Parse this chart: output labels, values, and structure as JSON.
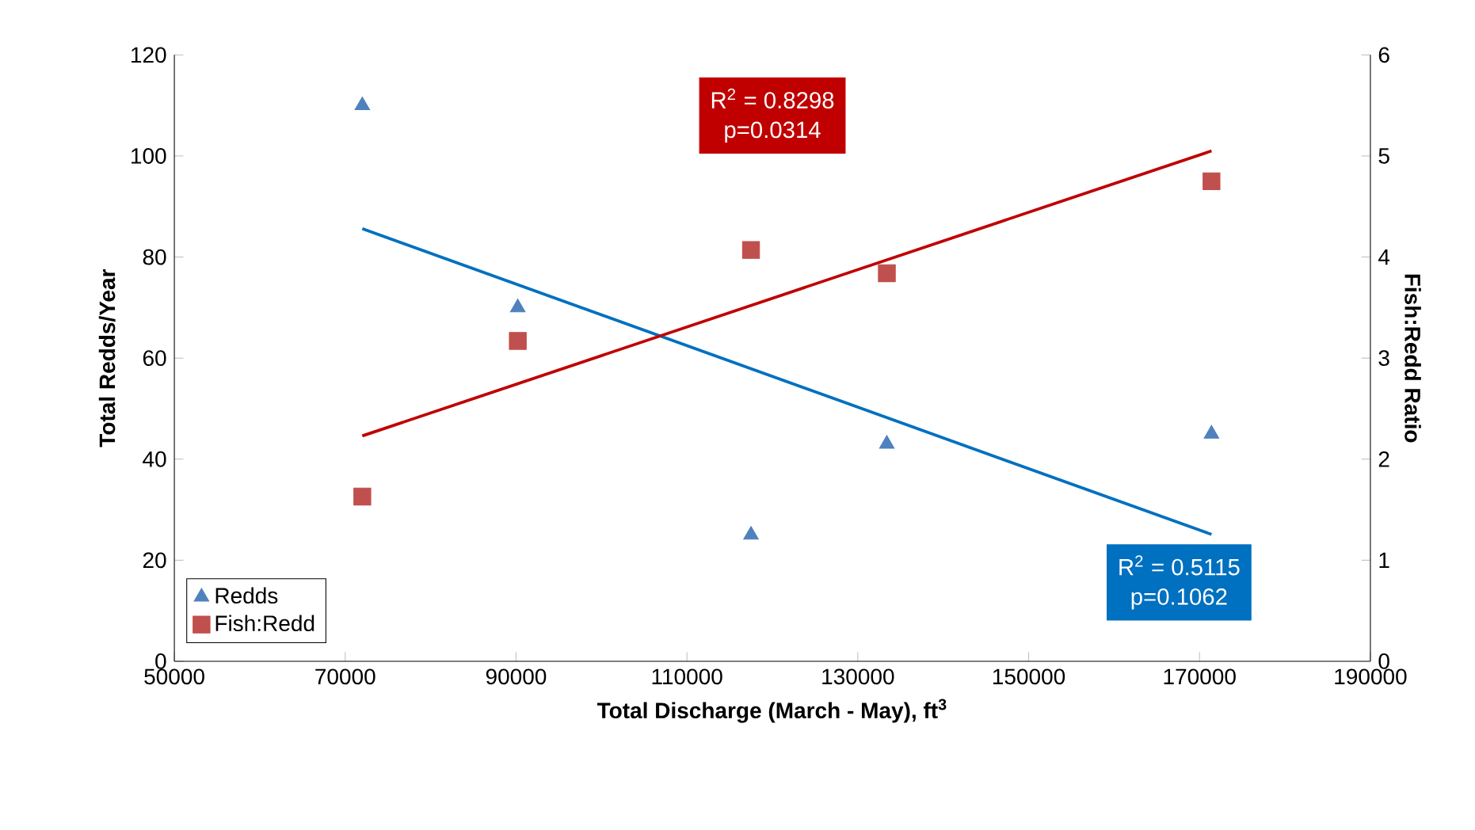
{
  "chart_data": {
    "type": "scatter",
    "xlabel": "Total Discharge (March - May), ft$^{3}$",
    "ylabel": "Total Redds/Year",
    "y2label": "Fish:Redd Ratio",
    "xlim": [
      50000,
      190000
    ],
    "xticks": [
      50000,
      70000,
      90000,
      110000,
      130000,
      150000,
      170000,
      190000
    ],
    "ylim": [
      0,
      120
    ],
    "yticks": [
      0,
      20,
      40,
      60,
      80,
      100,
      120
    ],
    "y2lim": [
      0,
      6
    ],
    "y2ticks": [
      0,
      1,
      2,
      3,
      4,
      5,
      6
    ],
    "legend": "bottom left",
    "grid": false,
    "series": [
      {
        "name": "Redds",
        "marker": "triangle",
        "color": "#4f81bd",
        "x": [
          72000,
          90200,
          117500,
          133400,
          171400
        ],
        "values": [
          110,
          70,
          25,
          43,
          45
        ]
      },
      {
        "name": "Fish:Redd",
        "marker": "square",
        "axis": "y2",
        "color": "#c0504d",
        "x": [
          72000,
          90200,
          117500,
          133400,
          171400
        ],
        "values": [
          1.63,
          3.17,
          4.07,
          3.84,
          4.75
        ]
      },
      {
        "type": "line",
        "color": "#0070c0",
        "line_style": "solid",
        "x": [
          72000,
          171400
        ],
        "values": [
          85.6,
          25.1
        ]
      },
      {
        "type": "line",
        "color": "#c00000",
        "line_style": "solid",
        "axis": "y2",
        "x": [
          72000,
          171400
        ],
        "values": [
          2.23,
          5.05
        ]
      }
    ],
    "annotations": [
      "R$^{2}$ = 0.8298",
      "p=0.0314",
      "R$^{2}$ = 0.5115",
      "p=0.1062"
    ]
  }
}
